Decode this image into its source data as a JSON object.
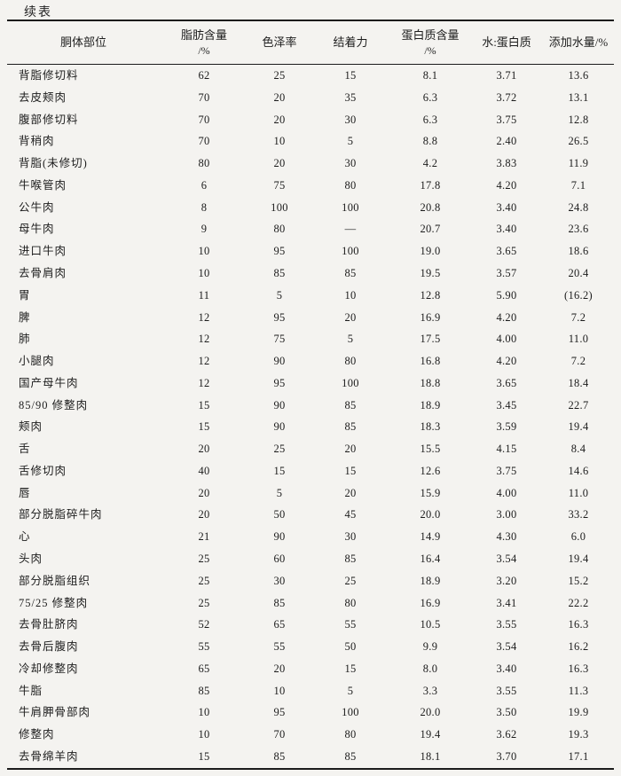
{
  "page": {
    "continued_label": "续表"
  },
  "table": {
    "columns": [
      {
        "l1": "胴体部位",
        "l2": ""
      },
      {
        "l1": "脂肪含量",
        "l2": "/%"
      },
      {
        "l1": "色泽率",
        "l2": ""
      },
      {
        "l1": "结着力",
        "l2": ""
      },
      {
        "l1": "蛋白质含量",
        "l2": "/%"
      },
      {
        "l1": "水:蛋白质",
        "l2": ""
      },
      {
        "l1": "添加水量/%",
        "l2": ""
      }
    ],
    "rows": [
      [
        "背脂修切料",
        "62",
        "25",
        "15",
        "8.1",
        "3.71",
        "13.6"
      ],
      [
        "去皮颊肉",
        "70",
        "20",
        "35",
        "6.3",
        "3.72",
        "13.1"
      ],
      [
        "腹部修切料",
        "70",
        "20",
        "30",
        "6.3",
        "3.75",
        "12.8"
      ],
      [
        "背稍肉",
        "70",
        "10",
        "5",
        "8.8",
        "2.40",
        "26.5"
      ],
      [
        "背脂(未修切)",
        "80",
        "20",
        "30",
        "4.2",
        "3.83",
        "11.9"
      ],
      [
        "牛喉管肉",
        "6",
        "75",
        "80",
        "17.8",
        "4.20",
        "7.1"
      ],
      [
        "公牛肉",
        "8",
        "100",
        "100",
        "20.8",
        "3.40",
        "24.8"
      ],
      [
        "母牛肉",
        "9",
        "80",
        "—",
        "20.7",
        "3.40",
        "23.6"
      ],
      [
        "进口牛肉",
        "10",
        "95",
        "100",
        "19.0",
        "3.65",
        "18.6"
      ],
      [
        "去骨肩肉",
        "10",
        "85",
        "85",
        "19.5",
        "3.57",
        "20.4"
      ],
      [
        "胃",
        "11",
        "5",
        "10",
        "12.8",
        "5.90",
        "(16.2)"
      ],
      [
        "脾",
        "12",
        "95",
        "20",
        "16.9",
        "4.20",
        "7.2"
      ],
      [
        "肺",
        "12",
        "75",
        "5",
        "17.5",
        "4.00",
        "11.0"
      ],
      [
        "小腿肉",
        "12",
        "90",
        "80",
        "16.8",
        "4.20",
        "7.2"
      ],
      [
        "国产母牛肉",
        "12",
        "95",
        "100",
        "18.8",
        "3.65",
        "18.4"
      ],
      [
        "85/90 修整肉",
        "15",
        "90",
        "85",
        "18.9",
        "3.45",
        "22.7"
      ],
      [
        "颊肉",
        "15",
        "90",
        "85",
        "18.3",
        "3.59",
        "19.4"
      ],
      [
        "舌",
        "20",
        "25",
        "20",
        "15.5",
        "4.15",
        "8.4"
      ],
      [
        "舌修切肉",
        "40",
        "15",
        "15",
        "12.6",
        "3.75",
        "14.6"
      ],
      [
        "唇",
        "20",
        "5",
        "20",
        "15.9",
        "4.00",
        "11.0"
      ],
      [
        "部分脱脂碎牛肉",
        "20",
        "50",
        "45",
        "20.0",
        "3.00",
        "33.2"
      ],
      [
        "心",
        "21",
        "90",
        "30",
        "14.9",
        "4.30",
        "6.0"
      ],
      [
        "头肉",
        "25",
        "60",
        "85",
        "16.4",
        "3.54",
        "19.4"
      ],
      [
        "部分脱脂组织",
        "25",
        "30",
        "25",
        "18.9",
        "3.20",
        "15.2"
      ],
      [
        "75/25 修整肉",
        "25",
        "85",
        "80",
        "16.9",
        "3.41",
        "22.2"
      ],
      [
        "去骨肚脐肉",
        "52",
        "65",
        "55",
        "10.5",
        "3.55",
        "16.3"
      ],
      [
        "去骨后腹肉",
        "55",
        "55",
        "50",
        "9.9",
        "3.54",
        "16.2"
      ],
      [
        "冷却修整肉",
        "65",
        "20",
        "15",
        "8.0",
        "3.40",
        "16.3"
      ],
      [
        "牛脂",
        "85",
        "10",
        "5",
        "3.3",
        "3.55",
        "11.3"
      ],
      [
        "牛肩胛骨部肉",
        "10",
        "95",
        "100",
        "20.0",
        "3.50",
        "19.9"
      ],
      [
        "修整肉",
        "10",
        "70",
        "80",
        "19.4",
        "3.62",
        "19.3"
      ],
      [
        "去骨绵羊肉",
        "15",
        "85",
        "85",
        "18.1",
        "3.70",
        "17.1"
      ]
    ]
  },
  "colors": {
    "page_bg": "#f4f3f0",
    "text": "#1d1d1d",
    "rule": "#1b1b1b"
  }
}
